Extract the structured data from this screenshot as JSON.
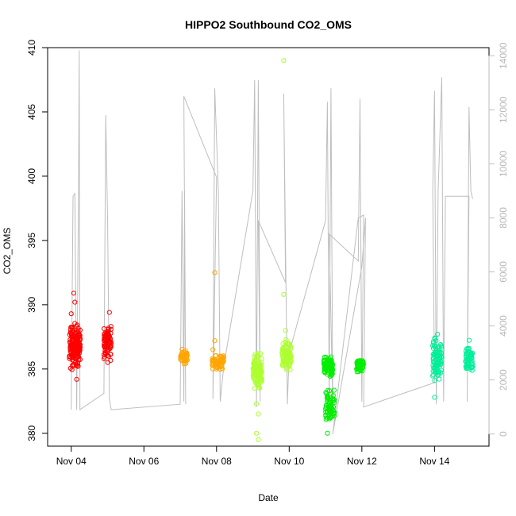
{
  "chart_data": {
    "type": "scatter",
    "title": "HIPPO2 Southbound CO2_OMS",
    "xlabel": "Date",
    "ylabel": "CO2_OMS",
    "x_ticks": [
      "Nov 04",
      "Nov 06",
      "Nov 08",
      "Nov 10",
      "Nov 12",
      "Nov 14"
    ],
    "x_tick_values": [
      4,
      6,
      8,
      10,
      12,
      14
    ],
    "xlim": [
      3.35,
      15.5
    ],
    "ylim": [
      379,
      410
    ],
    "y_ticks": [
      380,
      385,
      390,
      395,
      400,
      405,
      410
    ],
    "y2_ticks": [
      0,
      2000,
      4000,
      6000,
      8000,
      10000,
      12000,
      14000
    ],
    "y2lim": [
      -450,
      14300
    ],
    "y2_color": "#bebebe",
    "grid": false,
    "legend": "none",
    "series": [
      {
        "color": "#ff0000",
        "clusters": [
          {
            "x": [
              3.95,
              4.25
            ],
            "y": [
              384.5,
              389.0
            ],
            "n": 180
          },
          {
            "x": [
              4.9,
              5.1
            ],
            "y": [
              385.2,
              389.0
            ],
            "n": 90
          }
        ],
        "points": [
          [
            4.07,
            390.9
          ],
          [
            4.1,
            390.2
          ],
          [
            4.15,
            384.2
          ],
          [
            5.05,
            389.4
          ],
          [
            4.0,
            389.3
          ]
        ]
      },
      {
        "color": "#ffa500",
        "clusters": [
          {
            "x": [
              7.0,
              7.2
            ],
            "y": [
              385.3,
              386.7
            ],
            "n": 45
          },
          {
            "x": [
              7.85,
              8.2
            ],
            "y": [
              384.8,
              386.3
            ],
            "n": 70
          }
        ],
        "points": [
          [
            7.95,
            392.5
          ],
          [
            7.95,
            387.2
          ],
          [
            7.9,
            386.5
          ]
        ]
      },
      {
        "color": "#adff2f",
        "clusters": [
          {
            "x": [
              9.0,
              9.25
            ],
            "y": [
              383.0,
              386.6
            ],
            "n": 110
          },
          {
            "x": [
              9.8,
              10.05
            ],
            "y": [
              384.5,
              387.5
            ],
            "n": 90
          }
        ],
        "points": [
          [
            9.85,
            409.0
          ],
          [
            9.85,
            390.8
          ],
          [
            9.9,
            388.0
          ],
          [
            9.15,
            381.5
          ],
          [
            9.1,
            380.0
          ],
          [
            9.15,
            379.5
          ],
          [
            9.1,
            382.3
          ]
        ]
      },
      {
        "color": "#00ee00",
        "clusters": [
          {
            "x": [
              10.95,
              11.2
            ],
            "y": [
              384.0,
              386.2
            ],
            "n": 80
          },
          {
            "x": [
              11.0,
              11.25
            ],
            "y": [
              380.0,
              384.0
            ],
            "n": 70
          },
          {
            "x": [
              11.85,
              12.05
            ],
            "y": [
              384.5,
              386.0
            ],
            "n": 55
          }
        ],
        "points": [
          [
            11.05,
            380.0
          ]
        ]
      },
      {
        "color": "#00ee99",
        "clusters": [
          {
            "x": [
              13.95,
              14.2
            ],
            "y": [
              383.5,
              388.0
            ],
            "n": 90
          },
          {
            "x": [
              14.85,
              15.05
            ],
            "y": [
              384.0,
              387.5
            ],
            "n": 60
          }
        ],
        "points": [
          [
            14.0,
            384.1
          ],
          [
            14.0,
            382.8
          ]
        ]
      }
    ],
    "y2_series": [
      {
        "name": "",
        "color": "#bebebe",
        "points": [
          [
            4.0,
            900
          ],
          [
            4.05,
            8800
          ],
          [
            4.1,
            8900
          ],
          [
            4.15,
            900
          ],
          [
            4.2,
            8900
          ],
          [
            4.22,
            14200
          ],
          [
            4.24,
            900
          ],
          [
            4.9,
            1500
          ],
          [
            4.95,
            11800
          ],
          [
            5.0,
            8000
          ],
          [
            5.05,
            1300
          ],
          [
            5.1,
            900
          ],
          [
            7.0,
            1100
          ],
          [
            7.05,
            9000
          ],
          [
            7.1,
            1200
          ],
          [
            7.12,
            9000
          ],
          [
            7.15,
            1100
          ],
          [
            7.1,
            12500
          ],
          [
            8.0,
            9500
          ],
          [
            7.9,
            1300
          ],
          [
            7.95,
            12800
          ],
          [
            8.05,
            9000
          ],
          [
            8.1,
            1200
          ],
          [
            8.2,
            2500
          ],
          [
            9.0,
            9000
          ],
          [
            9.05,
            13100
          ],
          [
            9.1,
            1000
          ],
          [
            9.15,
            13100
          ],
          [
            9.2,
            1200
          ],
          [
            9.15,
            7900
          ],
          [
            9.9,
            5600
          ],
          [
            9.85,
            12600
          ],
          [
            9.95,
            1100
          ],
          [
            10.0,
            3000
          ],
          [
            11.0,
            7900
          ],
          [
            11.05,
            12300
          ],
          [
            11.1,
            1200
          ],
          [
            11.15,
            12800
          ],
          [
            11.2,
            1000
          ],
          [
            11.1,
            7400
          ],
          [
            11.9,
            6400
          ],
          [
            11.95,
            12400
          ],
          [
            12.0,
            1200
          ],
          [
            12.05,
            8100
          ],
          [
            11.9,
            8000
          ],
          [
            11.2,
            0
          ],
          [
            12.0,
            6200
          ],
          [
            12.1,
            8000
          ],
          [
            12.05,
            1000
          ],
          [
            14.0,
            1900
          ],
          [
            13.95,
            9000
          ],
          [
            14.0,
            12700
          ],
          [
            14.05,
            1100
          ],
          [
            14.1,
            9000
          ],
          [
            14.2,
            13200
          ],
          [
            14.25,
            1200
          ],
          [
            14.3,
            8800
          ],
          [
            14.95,
            8800
          ],
          [
            14.9,
            1200
          ],
          [
            14.95,
            12100
          ],
          [
            15.0,
            9000
          ],
          [
            15.05,
            8700
          ]
        ]
      }
    ]
  }
}
